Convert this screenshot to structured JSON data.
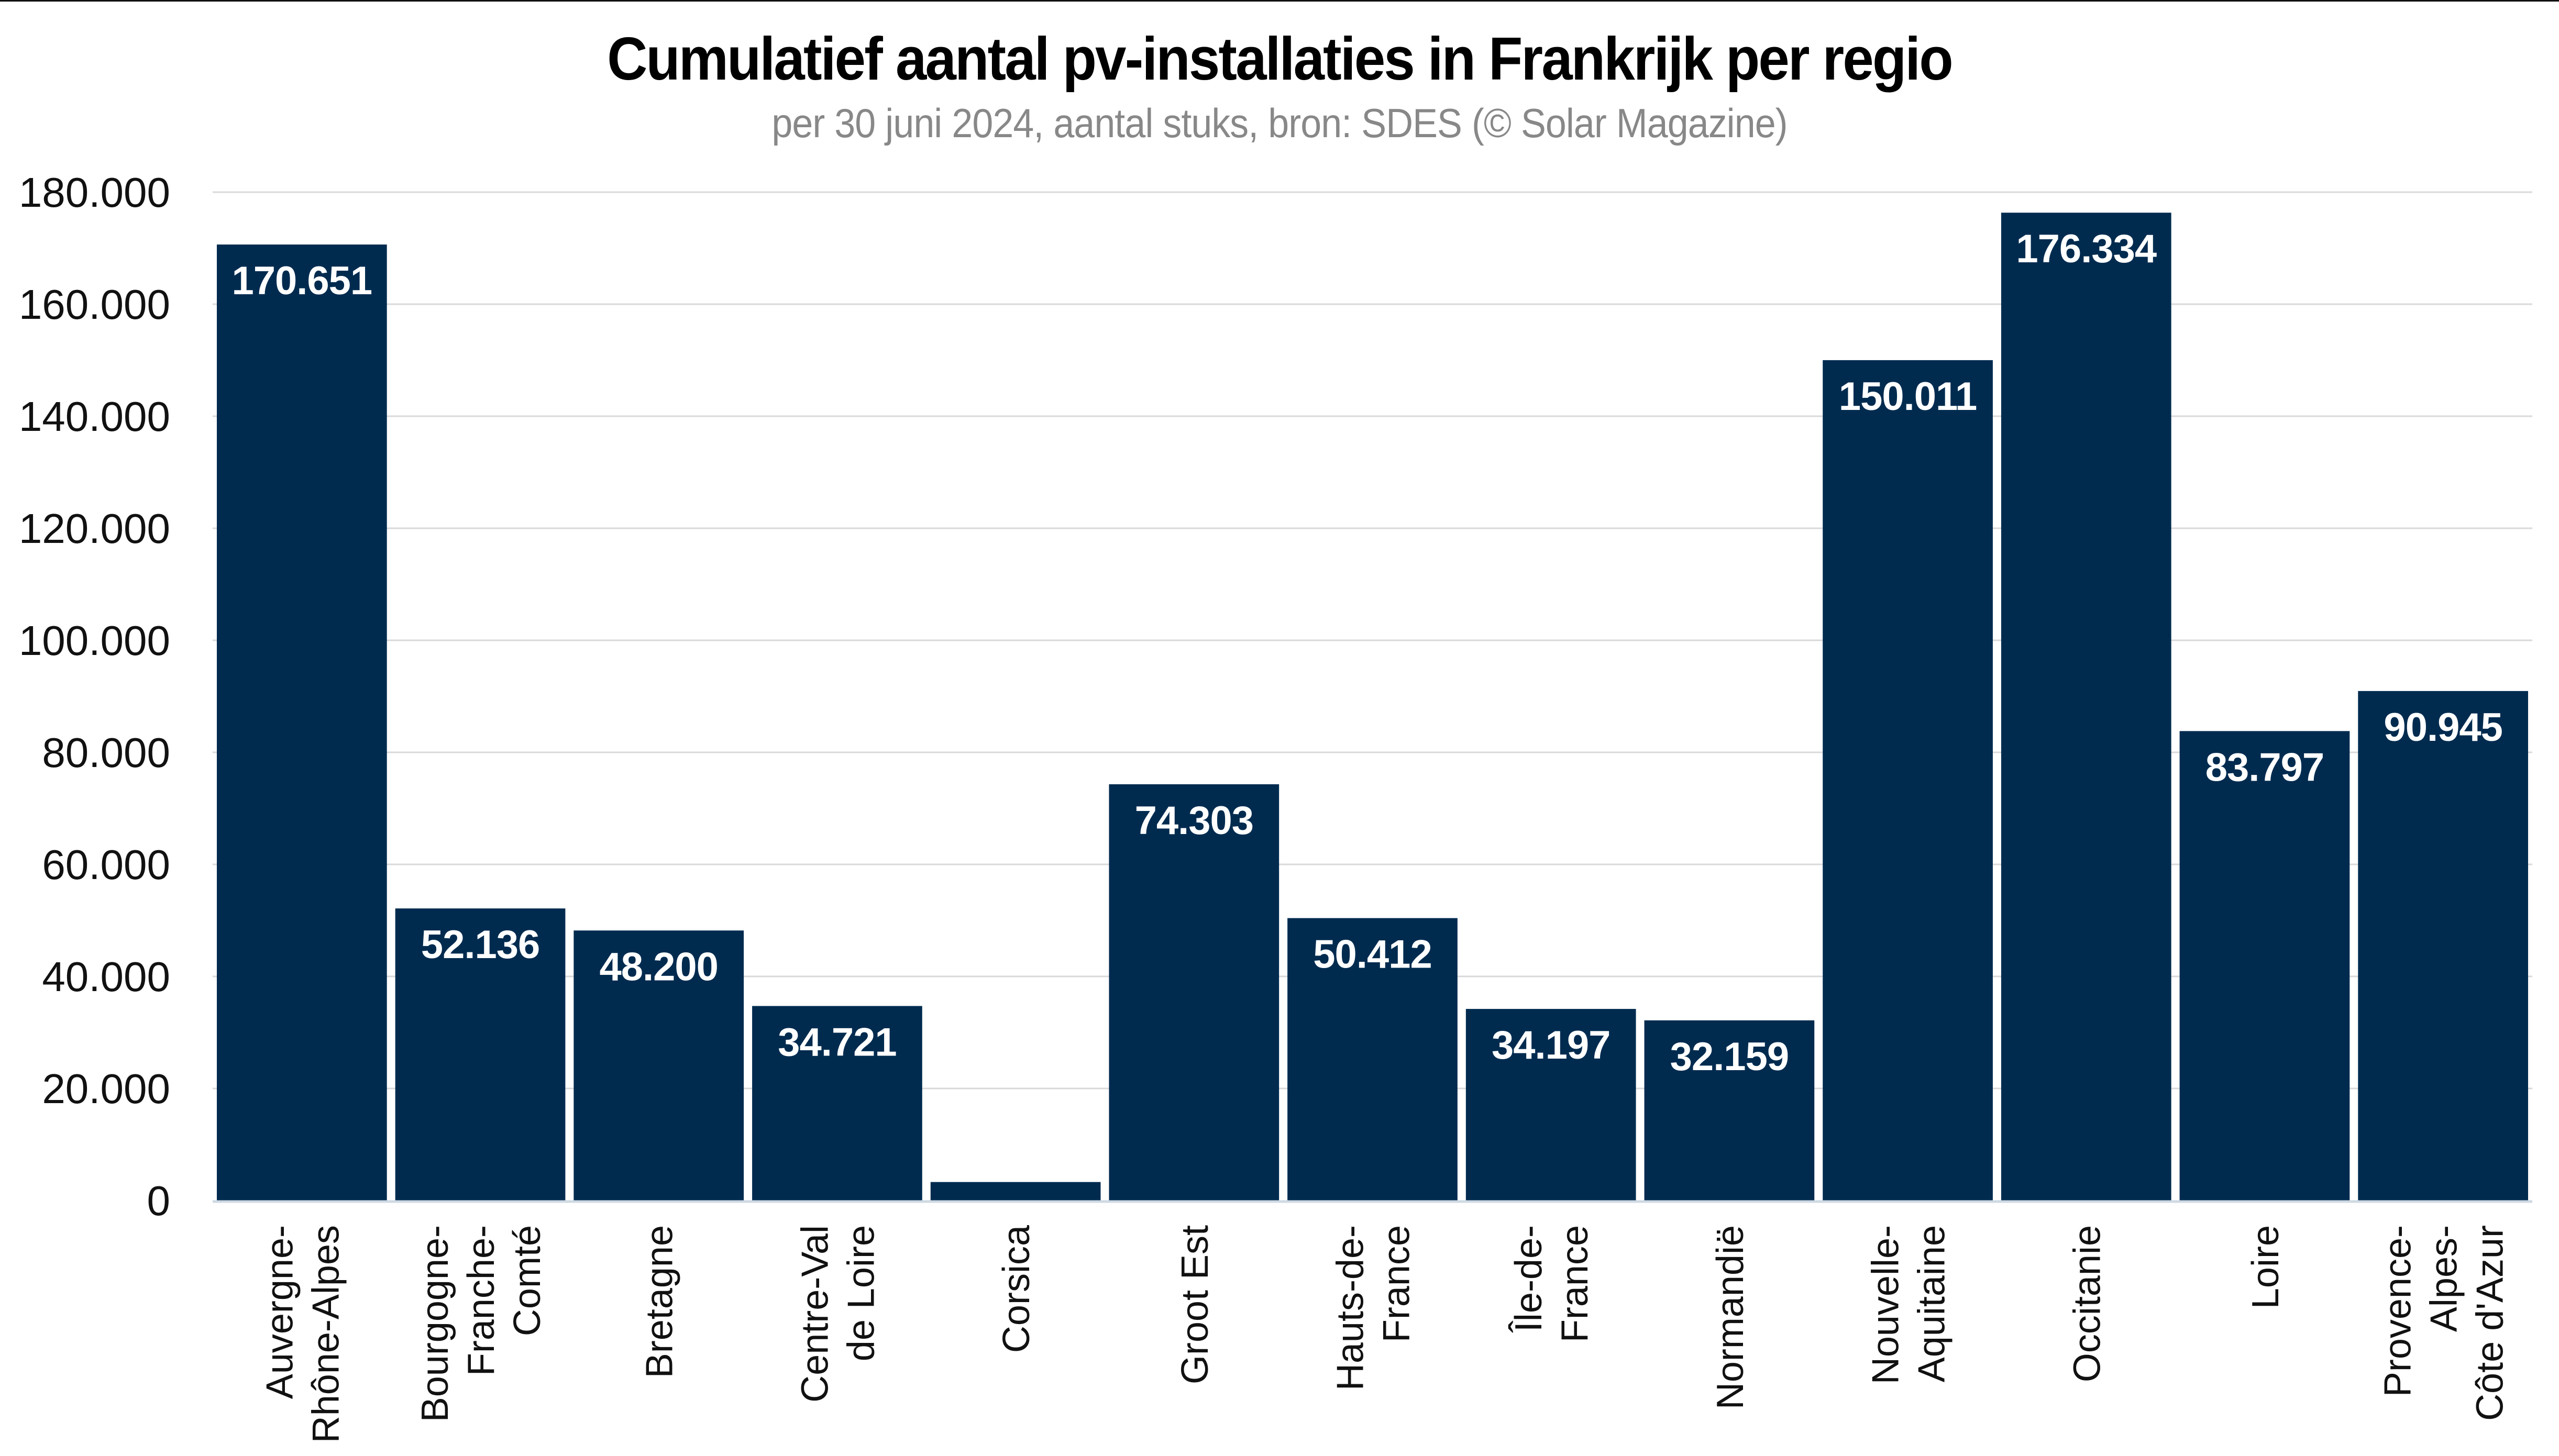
{
  "chart_data": {
    "type": "bar",
    "title": "Cumulatief aantal pv-installaties in Frankrijk per regio",
    "subtitle": "per 30 juni 2024, aantal stuks, bron: SDES (© Solar Magazine)",
    "xlabel": "",
    "ylabel": "",
    "ylim": [
      0,
      180000
    ],
    "yticks": [
      0,
      20000,
      40000,
      60000,
      80000,
      100000,
      120000,
      140000,
      160000,
      180000
    ],
    "ytick_labels": [
      "0",
      "20.000",
      "40.000",
      "60.000",
      "80.000",
      "100.000",
      "120.000",
      "140.000",
      "160.000",
      "180.000"
    ],
    "grid": true,
    "legend": "none",
    "bar_color": "#002b4f",
    "categories": [
      "Auvergne-Rhône-Alpes",
      "Bourgogne-Franche-Comté",
      "Bretagne",
      "Centre-Val de Loire",
      "Corsica",
      "Groot Est",
      "Hauts-de-France",
      "Île-de-France",
      "Normandië",
      "Nouvelle-Aquitaine",
      "Occitanie",
      "Loire",
      "Provence-Alpes-Côte d'Azur"
    ],
    "category_label_lines": [
      [
        "Auvergne-",
        "Rhône-Alpes"
      ],
      [
        "Bourgogne-",
        "Franche-",
        "Comté"
      ],
      [
        "Bretagne"
      ],
      [
        "Centre-Val",
        "de Loire"
      ],
      [
        "Corsica"
      ],
      [
        "Groot Est"
      ],
      [
        "Hauts-de-",
        "France"
      ],
      [
        "Île-de-",
        "France"
      ],
      [
        "Normandië"
      ],
      [
        "Nouvelle-",
        "Aquitaine"
      ],
      [
        "Occitanie"
      ],
      [
        "Loire"
      ],
      [
        "Provence-",
        "Alpes-",
        "Côte d'Azur"
      ]
    ],
    "values": [
      170651,
      52136,
      48200,
      34721,
      3300,
      74303,
      50412,
      34197,
      32159,
      150011,
      176334,
      83797,
      90945
    ],
    "data_labels": [
      "170.651",
      "52.136",
      "48.200",
      "34.721",
      "",
      "74.303",
      "50.412",
      "34.197",
      "32.159",
      "150.011",
      "176.334",
      "83.797",
      "90.945"
    ]
  }
}
